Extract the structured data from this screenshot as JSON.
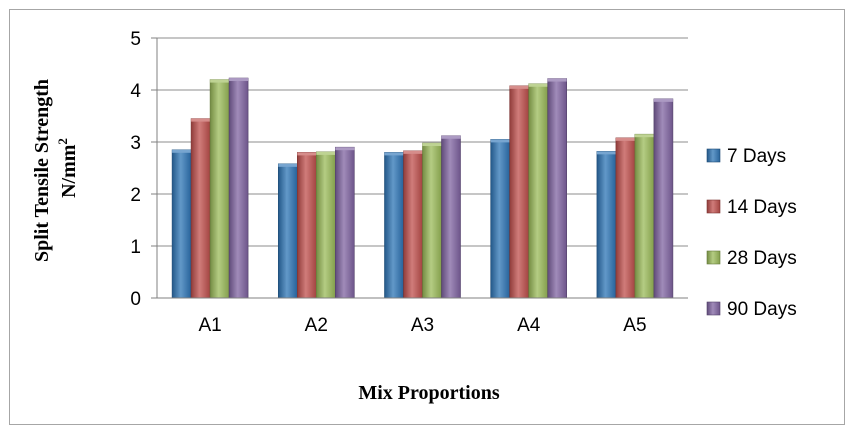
{
  "chart_data": {
    "type": "bar",
    "title": "",
    "xlabel": "Mix Proportions",
    "ylabel_line1": "Split Tensile Strength",
    "ylabel_line2": "N/mm",
    "ylabel_superscript": "2",
    "categories": [
      "A1",
      "A2",
      "A3",
      "A4",
      "A5"
    ],
    "ylim": [
      0,
      5
    ],
    "yticks": [
      0,
      1,
      2,
      3,
      4,
      5
    ],
    "grid": true,
    "legend_position": "right",
    "series": [
      {
        "name": "7 Days",
        "color": "#2e75b6",
        "values": [
          2.85,
          2.58,
          2.8,
          3.05,
          2.82
        ]
      },
      {
        "name": "14 Days",
        "color": "#c0504d",
        "values": [
          3.45,
          2.8,
          2.83,
          4.08,
          3.08
        ]
      },
      {
        "name": "28 Days",
        "color": "#9bbb59",
        "values": [
          4.2,
          2.81,
          2.98,
          4.12,
          3.15
        ]
      },
      {
        "name": "90 Days",
        "color": "#8064a2",
        "values": [
          4.23,
          2.9,
          3.12,
          4.22,
          3.83
        ]
      }
    ]
  }
}
